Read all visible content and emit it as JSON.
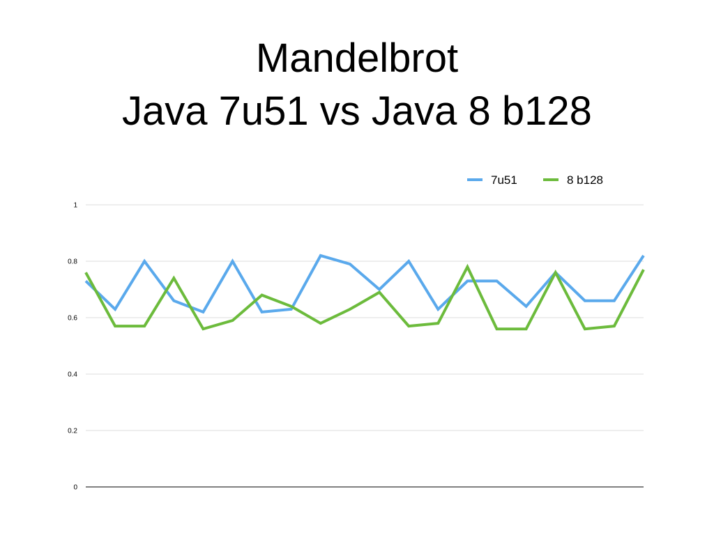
{
  "chart_data": {
    "type": "line",
    "title_lines": [
      "Mandelbrot",
      "Java 7u51 vs Java 8 b128"
    ],
    "xlabel": "",
    "ylabel": "",
    "ylim": [
      0,
      1
    ],
    "y_ticks": [
      0,
      0.2,
      0.4,
      0.6,
      0.8,
      1
    ],
    "y_tick_labels": [
      "0",
      "0.2",
      "0.4",
      "0.6",
      "0.8",
      "1"
    ],
    "grid": true,
    "legend_position": "top-right",
    "x": [
      1,
      2,
      3,
      4,
      5,
      6,
      7,
      8,
      9,
      10,
      11,
      12,
      13,
      14,
      15,
      16,
      17,
      18,
      19,
      20
    ],
    "series": [
      {
        "name": "7u51",
        "color": "#5aa9ec",
        "values": [
          0.73,
          0.63,
          0.8,
          0.66,
          0.62,
          0.8,
          0.62,
          0.63,
          0.82,
          0.79,
          0.7,
          0.8,
          0.63,
          0.73,
          0.73,
          0.64,
          0.76,
          0.66,
          0.66,
          0.82
        ]
      },
      {
        "name": "8 b128",
        "color": "#6cbb3c",
        "values": [
          0.76,
          0.57,
          0.57,
          0.74,
          0.56,
          0.59,
          0.68,
          0.64,
          0.58,
          0.63,
          0.69,
          0.57,
          0.58,
          0.78,
          0.56,
          0.56,
          0.76,
          0.56,
          0.57,
          0.77
        ]
      }
    ]
  }
}
